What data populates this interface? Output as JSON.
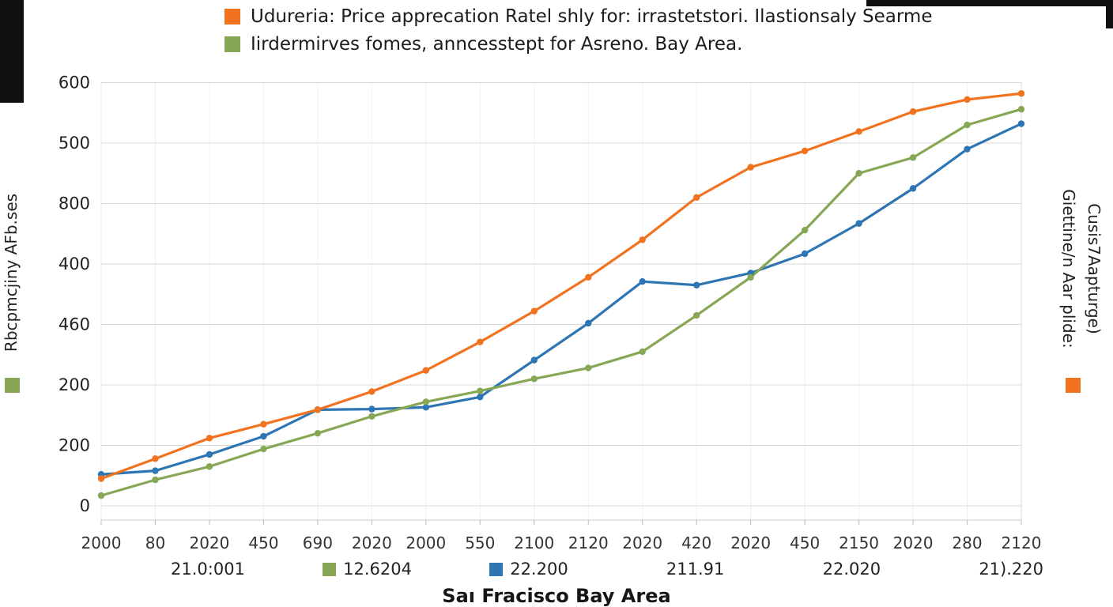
{
  "legend": {
    "items": [
      {
        "color": "#f1721f",
        "label": "Udureria: Price apprecation Ratel shly for: irrastetstori. Ilastionsaly Searme"
      },
      {
        "color": "#87a756",
        "label": "Iirdermirves fomes, anncesstept for Asreno. Bay Area."
      }
    ]
  },
  "left_axis": {
    "title": "Rbcpmcjiny AFb.ses",
    "swatch_color": "#87a756"
  },
  "right_axis": {
    "line1": "Giettine/n Aar plide:",
    "line2": "Cusis7Aapturge)",
    "swatch_color": "#f1721f"
  },
  "x_axis": {
    "title": "Saı Fracisco Bay Area",
    "sub_labels": [
      {
        "label": "21.0:001",
        "swatch": null
      },
      {
        "label": "12.6204",
        "swatch": "#87a756"
      },
      {
        "label": "22.200",
        "swatch": "#2e75b4"
      },
      {
        "label": "211.91",
        "swatch": null
      },
      {
        "label": "22.020",
        "swatch": null
      },
      {
        "label": "21).220",
        "swatch": null
      }
    ]
  },
  "chart_data": {
    "type": "line",
    "title": "Udureria: Price apprecation Ratel shly for: irrastetstori. Ilastionsaly Searme",
    "xlabel": "Saı Fracisco Bay Area",
    "ylabel": "Rbcpmcjiny AFb.ses",
    "grid": true,
    "ylim": [
      0,
      700
    ],
    "y_tick_labels": [
      "0",
      "200",
      "200",
      "460",
      "400",
      "800",
      "500",
      "600"
    ],
    "x": [
      "2000",
      "80",
      "2020",
      "450",
      "690",
      "2020",
      "2000",
      "550",
      "2100",
      "2120",
      "2020",
      "420",
      "2020",
      "450",
      "2150",
      "2020",
      "280",
      "2120"
    ],
    "series": [
      {
        "name": "22.200",
        "color": "#2e75b4",
        "values": [
          52,
          58,
          85,
          115,
          159,
          160,
          163,
          180,
          241,
          302,
          371,
          365,
          385,
          417,
          467,
          525,
          590,
          632
        ]
      },
      {
        "name": "Iirdermirves fomes, anncesstept for Asreno. Bay Area.",
        "color": "#87a756",
        "values": [
          17,
          43,
          65,
          94,
          120,
          148,
          172,
          190,
          210,
          228,
          255,
          315,
          378,
          456,
          550,
          576,
          630,
          656
        ]
      },
      {
        "name": "Udureria: Price apprecation Ratel shly for: irrastetstori. Ilastionsaly Searme",
        "color": "#f1721f",
        "values": [
          45,
          78,
          112,
          135,
          159,
          189,
          224,
          271,
          322,
          378,
          440,
          510,
          560,
          587,
          619,
          652,
          672,
          682
        ]
      }
    ]
  }
}
